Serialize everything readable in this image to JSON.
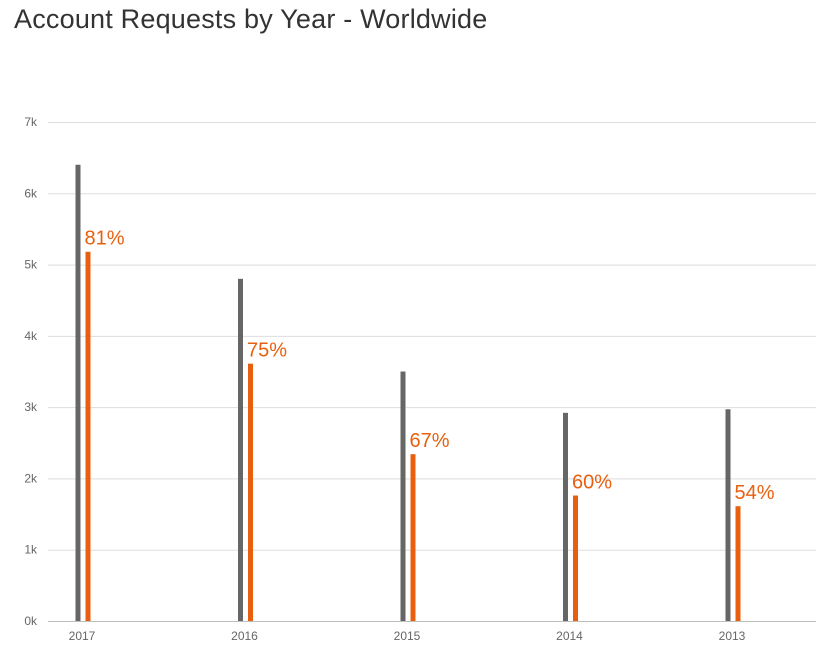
{
  "chart_data": {
    "type": "bar",
    "title": "Account Requests by Year - Worldwide",
    "categories": [
      "2017",
      "2016",
      "2015",
      "2014",
      "2013"
    ],
    "series": [
      {
        "values": [
          6400,
          4800,
          3500,
          2920,
          2970
        ],
        "color": "#666666"
      },
      {
        "values": [
          5180,
          3610,
          2340,
          1760,
          1610
        ],
        "color": "#e8600f",
        "data_labels": [
          "81%",
          "75%",
          "67%",
          "60%",
          "54%"
        ]
      }
    ],
    "y_ticks": [
      0,
      1000,
      2000,
      3000,
      4000,
      5000,
      6000,
      7000
    ],
    "y_tick_labels": [
      "0k",
      "1k",
      "2k",
      "3k",
      "4k",
      "5k",
      "6k",
      "7k"
    ],
    "ylim": [
      0,
      7000
    ],
    "grid": true,
    "legend": "none",
    "xlabel": "",
    "ylabel": ""
  }
}
